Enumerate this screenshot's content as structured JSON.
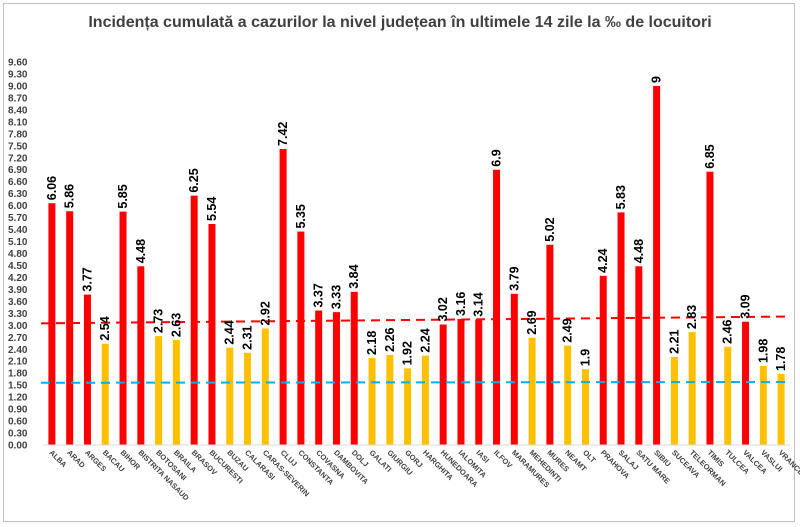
{
  "chart_data": {
    "type": "bar",
    "title": "Incidența cumulată a cazurilor la nivel județean în ultimele 14 zile la ‰ de locuitori",
    "xlabel": "",
    "ylabel": "",
    "ylim": [
      0,
      9.6
    ],
    "ytick_step": 0.3,
    "grid": false,
    "legend": "none",
    "categories": [
      "ALBA",
      "ARAD",
      "ARGES",
      "BACAU",
      "BIHOR",
      "BISTRITA NASAUD",
      "BOTOSANI",
      "BRAILA",
      "BRASOV",
      "BUCURESTI",
      "BUZAU",
      "CALARASI",
      "CARAS-SEVERIN",
      "CLUJ",
      "CONSTANTA",
      "COVASNA",
      "DAMBOVITA",
      "DOLJ",
      "GALATI",
      "GIURGIU",
      "GORJ",
      "HARGHITA",
      "HUNEDOARA",
      "IALOMITA",
      "IASI",
      "ILFOV",
      "MARAMURES",
      "MEHEDINTI",
      "MURES",
      "NEAMT",
      "OLT",
      "PRAHOVA",
      "SALAJ",
      "SATU MARE",
      "SIBIU",
      "SUCEAVA",
      "TELEORMAN",
      "TIMIS",
      "TULCEA",
      "VALCEA",
      "VASLUI",
      "VRANCEA"
    ],
    "values": [
      6.06,
      5.86,
      3.77,
      2.54,
      5.85,
      4.48,
      2.73,
      2.63,
      6.25,
      5.54,
      2.44,
      2.31,
      2.92,
      7.42,
      5.35,
      3.37,
      3.33,
      3.84,
      2.18,
      2.26,
      1.92,
      2.24,
      3.02,
      3.16,
      3.14,
      6.9,
      3.79,
      2.69,
      5.02,
      2.49,
      1.9,
      4.24,
      5.83,
      4.48,
      9,
      2.21,
      2.83,
      6.85,
      2.46,
      3.09,
      1.98,
      1.78
    ],
    "data_labels": [
      "6.06",
      "5.86",
      "3.77",
      "2.54",
      "5.85",
      "4.48",
      "2.73",
      "2.63",
      "6.25",
      "5.54",
      "2.44",
      "2.31",
      "2.92",
      "7.42",
      "5.35",
      "3.37",
      "3.33",
      "3.84",
      "2.18",
      "2.26",
      "1.92",
      "2.24",
      "3.02",
      "3.16",
      "3.14",
      "6.9",
      "3.79",
      "2.69",
      "5.02",
      "2.49",
      "1.9",
      "4.24",
      "5.83",
      "4.48",
      "9",
      "2.21",
      "2.83",
      "6.85",
      "2.46",
      "3.09",
      "1.98",
      "1.78"
    ],
    "high_threshold": 3,
    "colors": {
      "high": "#ff0000",
      "low": "#ffc000",
      "trend_red": "#ff0000",
      "trend_blue": "#00b0f0"
    },
    "reference_lines": [
      {
        "style": "dashed",
        "color": "#ff0000",
        "start_value": 3.05,
        "end_value": 3.22
      },
      {
        "style": "dashed",
        "color": "#00b0f0",
        "start_value": 1.56,
        "end_value": 1.58
      }
    ]
  }
}
